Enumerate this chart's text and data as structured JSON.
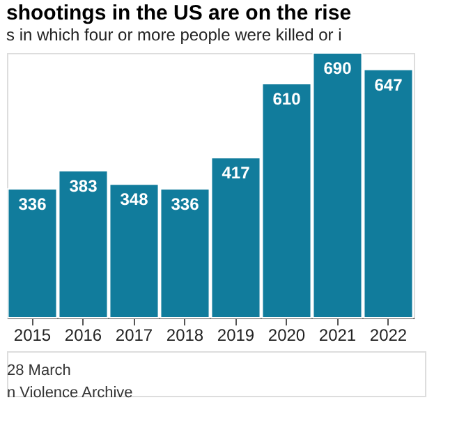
{
  "chart_data": {
    "type": "bar",
    "title": "shootings in the US are on the rise",
    "subtitle": "s in which four or more people were killed or i",
    "categories": [
      "2015",
      "2016",
      "2017",
      "2018",
      "2019",
      "2020",
      "2021",
      "2022"
    ],
    "values": [
      336,
      383,
      348,
      336,
      417,
      610,
      690,
      647
    ],
    "color": "#117c9c",
    "data_labels": true,
    "annotations": [
      "28 March",
      "n Violence Archive"
    ]
  }
}
